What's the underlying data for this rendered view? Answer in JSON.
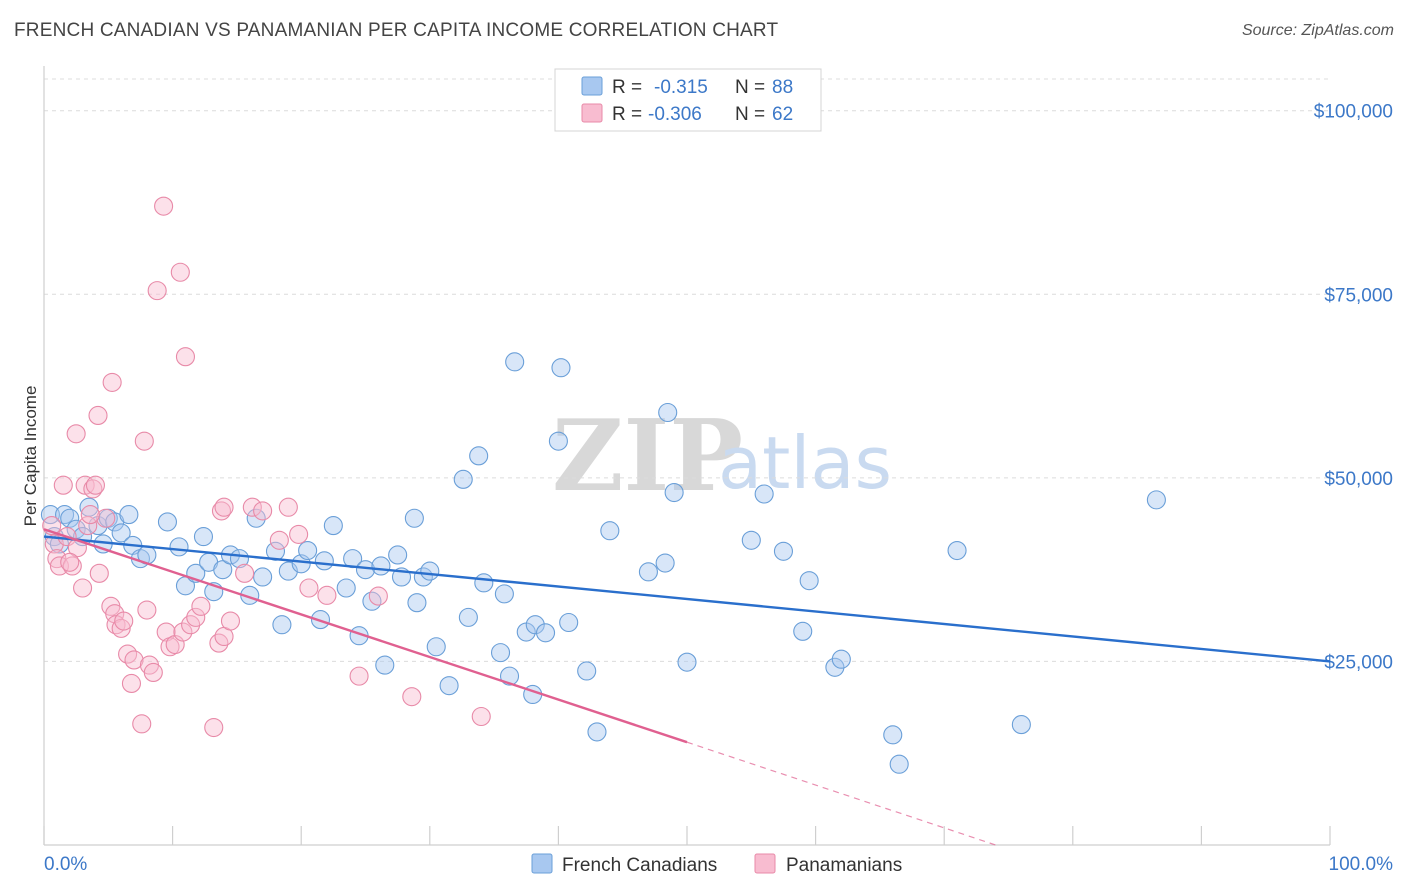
{
  "title": "FRENCH CANADIAN VS PANAMANIAN PER CAPITA INCOME CORRELATION CHART",
  "source": "Source: ZipAtlas.com",
  "watermark": {
    "zip": "ZIP",
    "atlas": "atlas"
  },
  "colors": {
    "blue_fill": "#a8c8f0",
    "blue_stroke": "#6a9fd8",
    "blue_line": "#2a6fcc",
    "pink_fill": "#f8bcd0",
    "pink_stroke": "#e88aa8",
    "pink_line": "#e06090",
    "accent_text": "#3c78c8"
  },
  "legend": {
    "rows": [
      {
        "r_label": "R =",
        "r_value": "-0.315",
        "n_label": "N =",
        "n_value": "88"
      },
      {
        "r_label": "R =",
        "r_value": "-0.306",
        "n_label": "N =",
        "n_value": "62"
      }
    ]
  },
  "bottom_legend": [
    "French Canadians",
    "Panamanians"
  ],
  "chart_data": {
    "type": "scatter",
    "title": "FRENCH CANADIAN VS PANAMANIAN PER CAPITA INCOME CORRELATION CHART",
    "xlabel": "",
    "ylabel": "Per Capita Income",
    "xlim": [
      0,
      100
    ],
    "ylim": [
      0,
      105000
    ],
    "x_tick_labels": [
      "0.0%",
      "100.0%"
    ],
    "y_ticks": [
      25000,
      50000,
      75000,
      100000
    ],
    "y_tick_labels": [
      "$25,000",
      "$50,000",
      "$75,000",
      "$100,000"
    ],
    "grid": true,
    "legend_position": "top-center",
    "series": [
      {
        "name": "French Canadians",
        "trend": {
          "x": [
            0,
            100
          ],
          "y": [
            42000,
            25000
          ]
        },
        "points": [
          [
            0.5,
            45000
          ],
          [
            0.8,
            42000
          ],
          [
            1.2,
            41000
          ],
          [
            1.6,
            45000
          ],
          [
            2.0,
            44500
          ],
          [
            2.5,
            43000
          ],
          [
            3.5,
            46000
          ],
          [
            3.0,
            42000
          ],
          [
            4.2,
            43500
          ],
          [
            4.6,
            41000
          ],
          [
            5.0,
            44500
          ],
          [
            5.5,
            44000
          ],
          [
            6.0,
            42500
          ],
          [
            6.6,
            45000
          ],
          [
            6.9,
            40800
          ],
          [
            7.5,
            39000
          ],
          [
            8.0,
            39500
          ],
          [
            9.6,
            44000
          ],
          [
            10.5,
            40600
          ],
          [
            11.0,
            35300
          ],
          [
            11.8,
            37000
          ],
          [
            12.4,
            42000
          ],
          [
            12.8,
            38500
          ],
          [
            13.2,
            34500
          ],
          [
            13.9,
            37500
          ],
          [
            14.5,
            39500
          ],
          [
            15.2,
            39000
          ],
          [
            16.0,
            34000
          ],
          [
            16.5,
            44500
          ],
          [
            17.0,
            36500
          ],
          [
            18.0,
            40000
          ],
          [
            18.5,
            30000
          ],
          [
            19.0,
            37300
          ],
          [
            20.0,
            38300
          ],
          [
            20.5,
            40100
          ],
          [
            21.5,
            30700
          ],
          [
            21.8,
            38700
          ],
          [
            22.5,
            43500
          ],
          [
            23.5,
            35000
          ],
          [
            24.0,
            39000
          ],
          [
            24.5,
            28500
          ],
          [
            25.0,
            37500
          ],
          [
            25.5,
            33200
          ],
          [
            26.2,
            38000
          ],
          [
            26.5,
            24500
          ],
          [
            27.5,
            39500
          ],
          [
            27.8,
            36500
          ],
          [
            28.8,
            44500
          ],
          [
            29.0,
            33000
          ],
          [
            29.5,
            36500
          ],
          [
            30.0,
            37300
          ],
          [
            30.5,
            27000
          ],
          [
            31.5,
            21700
          ],
          [
            32.6,
            49800
          ],
          [
            33.0,
            31000
          ],
          [
            33.8,
            53000
          ],
          [
            34.2,
            35700
          ],
          [
            35.5,
            26200
          ],
          [
            35.8,
            34200
          ],
          [
            36.2,
            23000
          ],
          [
            36.6,
            65800
          ],
          [
            37.5,
            29000
          ],
          [
            38.0,
            20500
          ],
          [
            38.2,
            30000
          ],
          [
            39.0,
            28900
          ],
          [
            40.0,
            55000
          ],
          [
            40.2,
            65000
          ],
          [
            40.8,
            30300
          ],
          [
            42.2,
            23700
          ],
          [
            43.0,
            15400
          ],
          [
            44.0,
            42800
          ],
          [
            47.0,
            37200
          ],
          [
            48.3,
            38400
          ],
          [
            48.5,
            58900
          ],
          [
            49.0,
            48000
          ],
          [
            50.0,
            24900
          ],
          [
            55.0,
            41500
          ],
          [
            56.0,
            47800
          ],
          [
            57.5,
            40000
          ],
          [
            59.0,
            29100
          ],
          [
            59.5,
            36000
          ],
          [
            61.5,
            24200
          ],
          [
            62.0,
            25300
          ],
          [
            66.0,
            15000
          ],
          [
            66.5,
            11000
          ],
          [
            71.0,
            40100
          ],
          [
            76.0,
            16400
          ],
          [
            86.5,
            47000
          ]
        ]
      },
      {
        "name": "Panamanians",
        "trend": {
          "x": [
            0,
            50
          ],
          "y": [
            43000,
            14000
          ]
        },
        "trend_dashed": {
          "x": [
            50,
            74
          ],
          "y": [
            14000,
            0
          ]
        },
        "points": [
          [
            0.6,
            43500
          ],
          [
            0.8,
            41000
          ],
          [
            1.0,
            39000
          ],
          [
            1.2,
            38000
          ],
          [
            1.5,
            49000
          ],
          [
            1.8,
            42000
          ],
          [
            2.2,
            38000
          ],
          [
            2.5,
            56000
          ],
          [
            2.6,
            40500
          ],
          [
            3.0,
            35000
          ],
          [
            3.2,
            49000
          ],
          [
            3.4,
            43500
          ],
          [
            3.8,
            48500
          ],
          [
            4.0,
            49000
          ],
          [
            4.2,
            58500
          ],
          [
            4.3,
            37000
          ],
          [
            4.8,
            44500
          ],
          [
            5.2,
            32500
          ],
          [
            5.3,
            63000
          ],
          [
            5.5,
            31500
          ],
          [
            5.6,
            30000
          ],
          [
            6.0,
            29500
          ],
          [
            6.2,
            30500
          ],
          [
            6.5,
            26000
          ],
          [
            6.8,
            22000
          ],
          [
            7.0,
            25200
          ],
          [
            7.6,
            16500
          ],
          [
            7.8,
            55000
          ],
          [
            8.0,
            32000
          ],
          [
            8.2,
            24500
          ],
          [
            8.5,
            23500
          ],
          [
            8.8,
            75500
          ],
          [
            9.3,
            87000
          ],
          [
            9.5,
            29000
          ],
          [
            9.8,
            27000
          ],
          [
            10.2,
            27300
          ],
          [
            10.6,
            78000
          ],
          [
            10.8,
            29000
          ],
          [
            11.0,
            66500
          ],
          [
            11.4,
            30000
          ],
          [
            11.8,
            31000
          ],
          [
            12.2,
            32500
          ],
          [
            13.2,
            16000
          ],
          [
            13.6,
            27500
          ],
          [
            14.0,
            28400
          ],
          [
            14.5,
            30500
          ],
          [
            15.6,
            37000
          ],
          [
            16.2,
            46000
          ],
          [
            17.0,
            45500
          ],
          [
            18.3,
            41500
          ],
          [
            19.0,
            46000
          ],
          [
            19.8,
            42300
          ],
          [
            20.6,
            35000
          ],
          [
            22.0,
            34000
          ],
          [
            24.5,
            23000
          ],
          [
            26.0,
            33900
          ],
          [
            28.6,
            20200
          ],
          [
            34.0,
            17500
          ],
          [
            13.8,
            45500
          ],
          [
            14.0,
            46000
          ],
          [
            3.6,
            45000
          ],
          [
            2.0,
            38500
          ]
        ]
      }
    ]
  }
}
